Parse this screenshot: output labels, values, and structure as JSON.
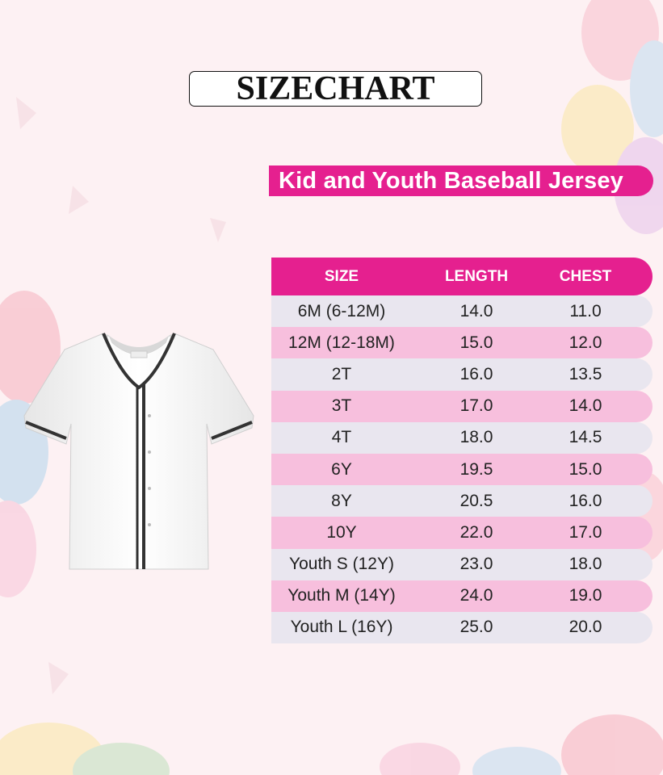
{
  "title": "SIZECHART",
  "subtitle": "Kid and Youth Baseball Jersey",
  "colors": {
    "accent": "#e5208f",
    "row_light": "#e9e6ef",
    "row_pink": "#f7bfdd",
    "background": "#fdf1f3"
  },
  "table": {
    "headers": [
      "SIZE",
      "LENGTH",
      "CHEST"
    ],
    "rows": [
      [
        "6M (6-12M)",
        "14.0",
        "11.0"
      ],
      [
        "12M (12-18M)",
        "15.0",
        "12.0"
      ],
      [
        "2T",
        "16.0",
        "13.5"
      ],
      [
        "3T",
        "17.0",
        "14.0"
      ],
      [
        "4T",
        "18.0",
        "14.5"
      ],
      [
        "6Y",
        "19.5",
        "15.0"
      ],
      [
        "8Y",
        "20.5",
        "16.0"
      ],
      [
        "10Y",
        "22.0",
        "17.0"
      ],
      [
        "Youth S (12Y)",
        "23.0",
        "18.0"
      ],
      [
        "Youth M (14Y)",
        "24.0",
        "19.0"
      ],
      [
        "Youth L (16Y)",
        "25.0",
        "20.0"
      ]
    ]
  },
  "image": {
    "icon": "baseball-jersey"
  }
}
